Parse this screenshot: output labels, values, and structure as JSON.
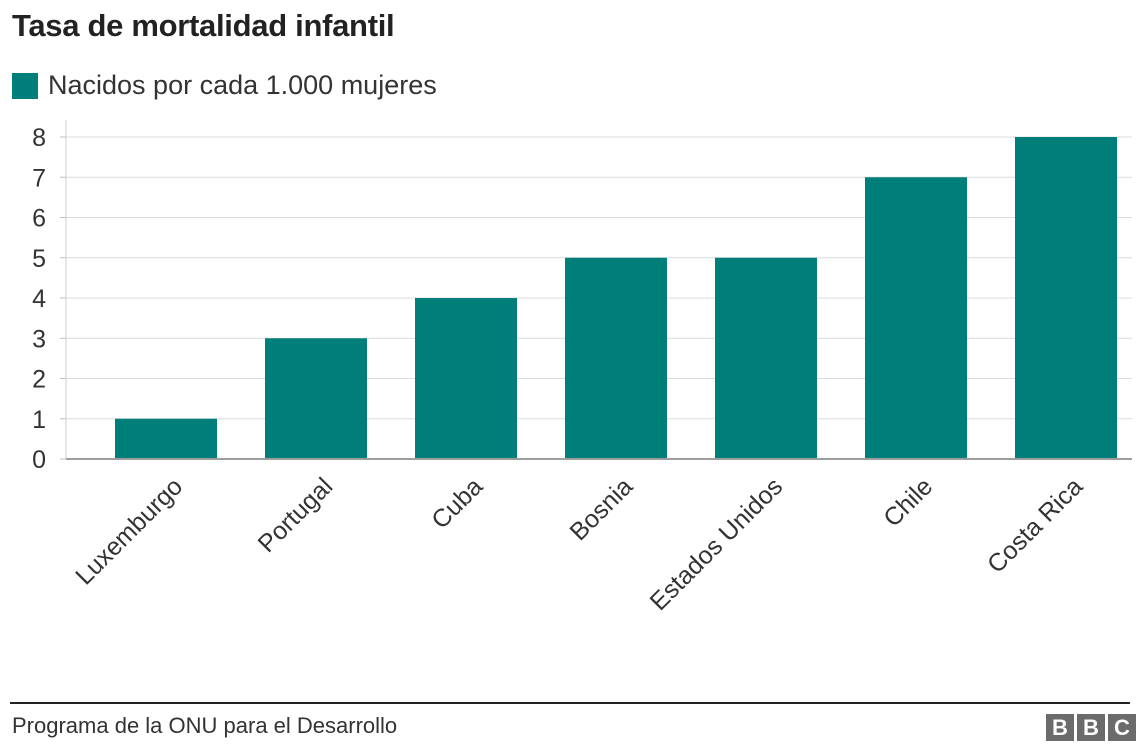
{
  "title": "Tasa de mortalidad infantil",
  "legend": {
    "label": "Nacidos por cada 1.000 mujeres",
    "color": "#007f7a"
  },
  "source": "Programa de la ONU para el Desarrollo",
  "logo": {
    "letters": [
      "B",
      "B",
      "C"
    ]
  },
  "chart_data": {
    "type": "bar",
    "title": "Tasa de mortalidad infantil",
    "categories": [
      "Luxemburgo",
      "Portugal",
      "Cuba",
      "Bosnia",
      "Estados Unidos",
      "Chile",
      "Costa Rica"
    ],
    "series": [
      {
        "name": "Nacidos por cada 1.000 mujeres",
        "values": [
          1,
          3,
          4,
          5,
          5,
          7,
          8
        ],
        "color": "#007f7a"
      }
    ],
    "y_ticks": [
      0,
      1,
      2,
      3,
      4,
      5,
      6,
      7,
      8
    ],
    "ylim": [
      0,
      8
    ],
    "grid": true,
    "legend_position": "top-left"
  }
}
